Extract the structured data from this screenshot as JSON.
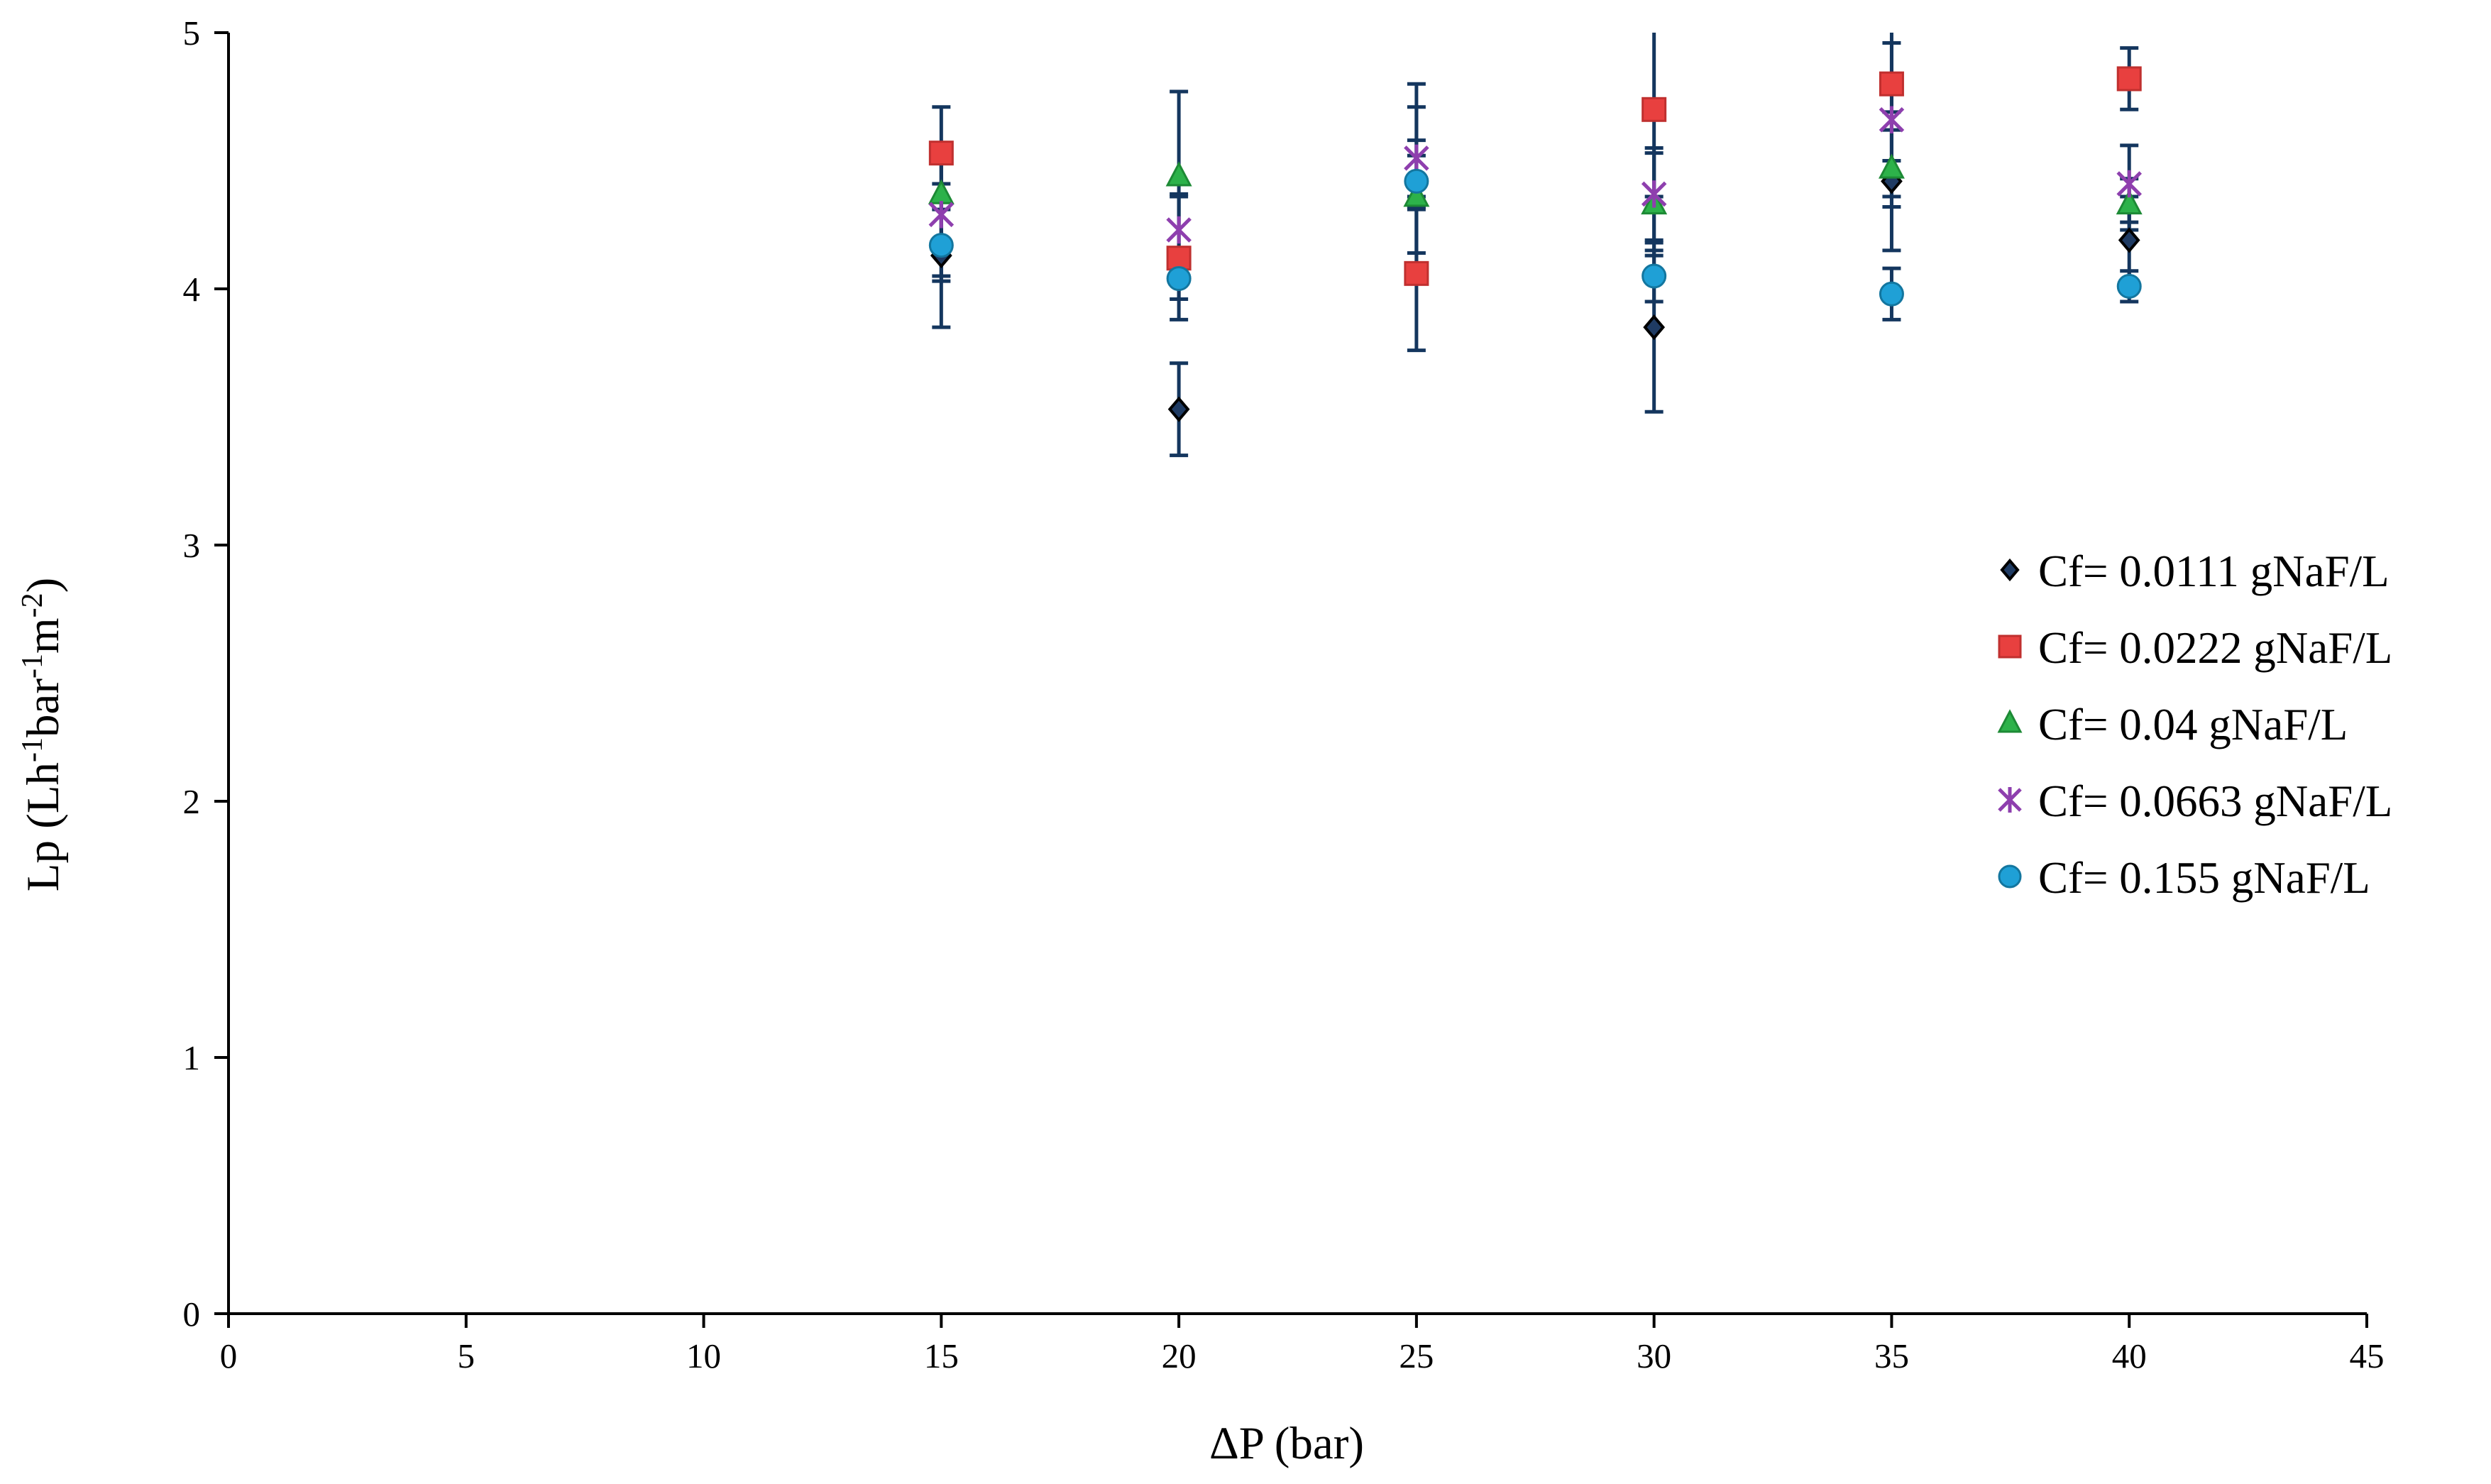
{
  "chart_data": {
    "type": "scatter",
    "title": "",
    "xlabel": "ΔP (bar)",
    "ylabel_main": "Lp (Lh",
    "ylabel_sup1": "-1",
    "ylabel_mid": "bar",
    "ylabel_sup2": "-1",
    "ylabel_m": "m",
    "ylabel_sup3": "-2",
    "ylabel_end": ")",
    "xlim": [
      0,
      45
    ],
    "ylim": [
      0,
      5
    ],
    "xticks": [
      0,
      5,
      10,
      15,
      20,
      25,
      30,
      35,
      40,
      45
    ],
    "yticks": [
      0,
      1,
      2,
      3,
      4,
      5
    ],
    "grid": false,
    "legend_position": "right-middle",
    "error_bar_color": "#14365e",
    "series": [
      {
        "name": "Cf= 0.0111 gNaF/L",
        "marker": "diamond",
        "color": "#1f3b63",
        "edge": "#000000",
        "x": [
          15,
          20,
          25,
          30,
          35,
          40
        ],
        "y": [
          4.13,
          3.53,
          4.42,
          3.85,
          4.42,
          4.19
        ],
        "err": [
          0.28,
          0.18,
          0.38,
          0.33,
          0.27,
          0.17
        ]
      },
      {
        "name": "Cf= 0.0222 gNaF/L",
        "marker": "square",
        "color": "#e8403f",
        "edge": "#c0302f",
        "x": [
          15,
          20,
          25,
          30,
          35,
          40
        ],
        "y": [
          4.53,
          4.12,
          4.06,
          4.7,
          4.8,
          4.82
        ],
        "err": [
          0.18,
          0.24,
          0.3,
          0.34,
          0.3,
          0.12
        ]
      },
      {
        "name": "Cf= 0.04 gNaF/L",
        "marker": "triangle",
        "color": "#2db24a",
        "edge": "#1d8a35",
        "x": [
          15,
          20,
          25,
          30,
          35,
          40
        ],
        "y": [
          4.37,
          4.44,
          4.36,
          4.33,
          4.47,
          4.33
        ],
        "err": [
          0.2,
          0.33,
          0.22,
          0.2,
          0.15,
          0.1
        ]
      },
      {
        "name": "Cf= 0.0663 gNaF/L",
        "marker": "asterisk",
        "color": "#8e3fae",
        "edge": "#8e3fae",
        "x": [
          15,
          20,
          25,
          30,
          35,
          40
        ],
        "y": [
          4.29,
          4.23,
          4.51,
          4.37,
          4.66,
          4.41
        ],
        "err": [
          0.24,
          0.14,
          0.2,
          0.18,
          0.3,
          0.15
        ]
      },
      {
        "name": "Cf= 0.155 gNaF/L",
        "marker": "circle",
        "color": "#1fa0d6",
        "edge": "#13769f",
        "x": [
          15,
          20,
          25,
          30,
          35,
          40
        ],
        "y": [
          4.17,
          4.04,
          4.42,
          4.05,
          3.98,
          4.01
        ],
        "err": [
          0.14,
          0.08,
          0.1,
          0.1,
          0.1,
          0.06
        ]
      }
    ]
  }
}
